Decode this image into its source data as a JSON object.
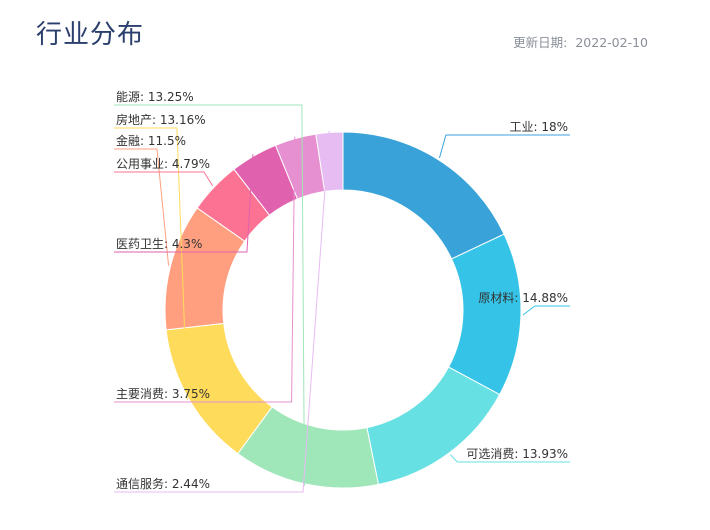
{
  "header": {
    "title": "行业分布",
    "update_label": "更新日期:",
    "update_date": "2022-02-10"
  },
  "chart_data": {
    "type": "pie",
    "style": "donut",
    "title": "行业分布",
    "slices": [
      {
        "label": "工业",
        "value": 18,
        "display": "18%",
        "color": "#38a2d9",
        "side": "right"
      },
      {
        "label": "原材料",
        "value": 14.88,
        "display": "14.88%",
        "color": "#35c4e8",
        "side": "right"
      },
      {
        "label": "可选消费",
        "value": 13.93,
        "display": "13.93%",
        "color": "#67e0e3",
        "side": "right"
      },
      {
        "label": "能源",
        "value": 13.25,
        "display": "13.25%",
        "color": "#9fe6b8",
        "side": "left"
      },
      {
        "label": "房地产",
        "value": 13.16,
        "display": "13.16%",
        "color": "#ffdb5c",
        "side": "left"
      },
      {
        "label": "金融",
        "value": 11.5,
        "display": "11.5%",
        "color": "#ff9f7f",
        "side": "left"
      },
      {
        "label": "公用事业",
        "value": 4.79,
        "display": "4.79%",
        "color": "#fb7293",
        "side": "left"
      },
      {
        "label": "医药卫生",
        "value": 4.3,
        "display": "4.3%",
        "color": "#e062ae",
        "side": "left"
      },
      {
        "label": "主要消费",
        "value": 3.75,
        "display": "3.75%",
        "color": "#e690d1",
        "side": "left"
      },
      {
        "label": "通信服务",
        "value": 2.44,
        "display": "2.44%",
        "color": "#e7bcf3",
        "side": "left"
      }
    ]
  }
}
